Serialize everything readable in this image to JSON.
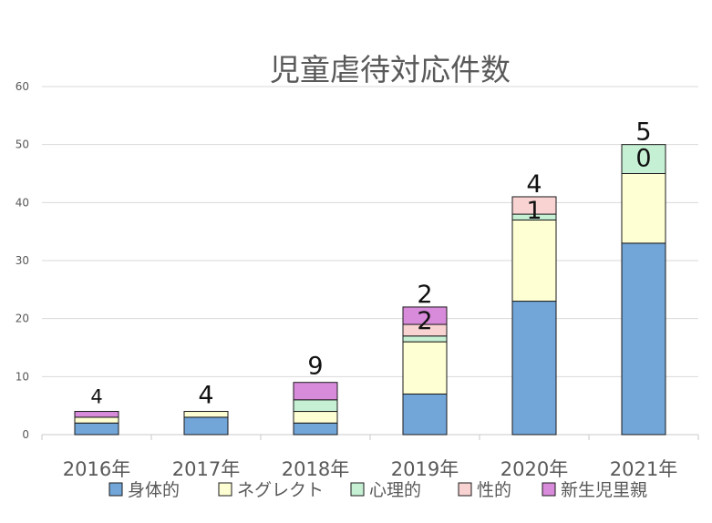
{
  "chart_data": {
    "type": "bar",
    "stacked": true,
    "title": "児童虐待対応件数",
    "categories": [
      "2016年",
      "2017年",
      "2018年",
      "2019年",
      "2020年",
      "2021年"
    ],
    "ylim": [
      0,
      60
    ],
    "yticks": [
      0,
      10,
      20,
      30,
      40,
      50,
      60
    ],
    "grid": true,
    "legend_position": "bottom",
    "series": [
      {
        "name": "身体的",
        "color": "#72A6D9",
        "values": [
          2,
          3,
          2,
          7,
          23,
          33
        ]
      },
      {
        "name": "ネグレクト",
        "color": "#FFFFD4",
        "values": [
          1,
          1,
          2,
          9,
          14,
          12
        ]
      },
      {
        "name": "心理的",
        "color": "#C6F0D4",
        "values": [
          0,
          0,
          2,
          1,
          1,
          5
        ]
      },
      {
        "name": "性的",
        "color": "#F9D2D2",
        "values": [
          0,
          0,
          0,
          2,
          3,
          0
        ]
      },
      {
        "name": "新生児里親",
        "color": "#D98BDB",
        "values": [
          1,
          0,
          3,
          3,
          0,
          0
        ]
      }
    ],
    "totals": [
      "4",
      "4",
      "9",
      "22",
      "41",
      "50"
    ]
  }
}
